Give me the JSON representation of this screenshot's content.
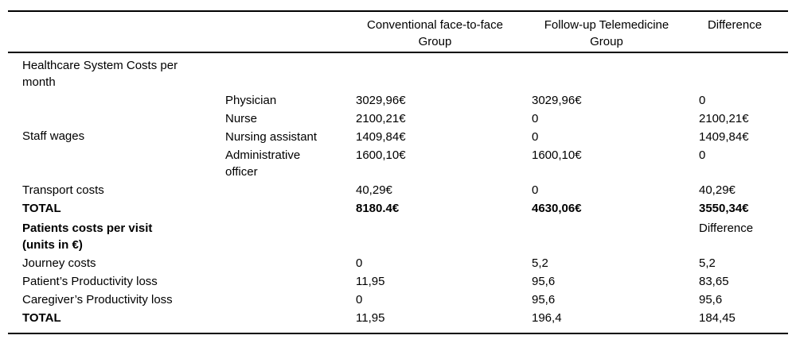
{
  "colors": {
    "background": "#ffffff",
    "text": "#000000",
    "rule": "#000000"
  },
  "table": {
    "header": {
      "conventional": "Conventional face-to-face\nGroup",
      "telemedicine": "Follow-up Telemedicine\nGroup",
      "difference": "Difference"
    },
    "healthcare_section": {
      "title": "Healthcare System Costs per\nmonth",
      "staff_wages_label": "Staff wages",
      "rows": [
        {
          "label": "Physician",
          "conventional": "3029,96€",
          "telemedicine": "3029,96€",
          "difference": "0"
        },
        {
          "label": "Nurse",
          "conventional": "2100,21€",
          "telemedicine": "0",
          "difference": "2100,21€"
        },
        {
          "label": "Nursing assistant",
          "conventional": "1409,84€",
          "telemedicine": "0",
          "difference": "1409,84€"
        },
        {
          "label": "Administrative\nofficer",
          "conventional": "1600,10€",
          "telemedicine": "1600,10€",
          "difference": "0"
        }
      ],
      "transport": {
        "label": "Transport costs",
        "conventional": "40,29€",
        "telemedicine": "0",
        "difference": "40,29€"
      },
      "total": {
        "label": "TOTAL",
        "conventional": "8180.4€",
        "telemedicine": "4630,06€",
        "difference": "3550,34€"
      }
    },
    "patient_section": {
      "title": "Patients costs per visit\n(units in €)",
      "difference_label": "Difference",
      "rows": [
        {
          "label": "Journey costs",
          "conventional": "0",
          "telemedicine": "5,2",
          "difference": "5,2"
        },
        {
          "label": "Patient’s Productivity loss",
          "conventional": "11,95",
          "telemedicine": "95,6",
          "difference": "83,65"
        },
        {
          "label": "Caregiver’s Productivity loss",
          "conventional": "0",
          "telemedicine": "95,6",
          "difference": "95,6"
        }
      ],
      "total": {
        "label": "TOTAL",
        "conventional": "11,95",
        "telemedicine": "196,4",
        "difference": "184,45"
      }
    }
  }
}
